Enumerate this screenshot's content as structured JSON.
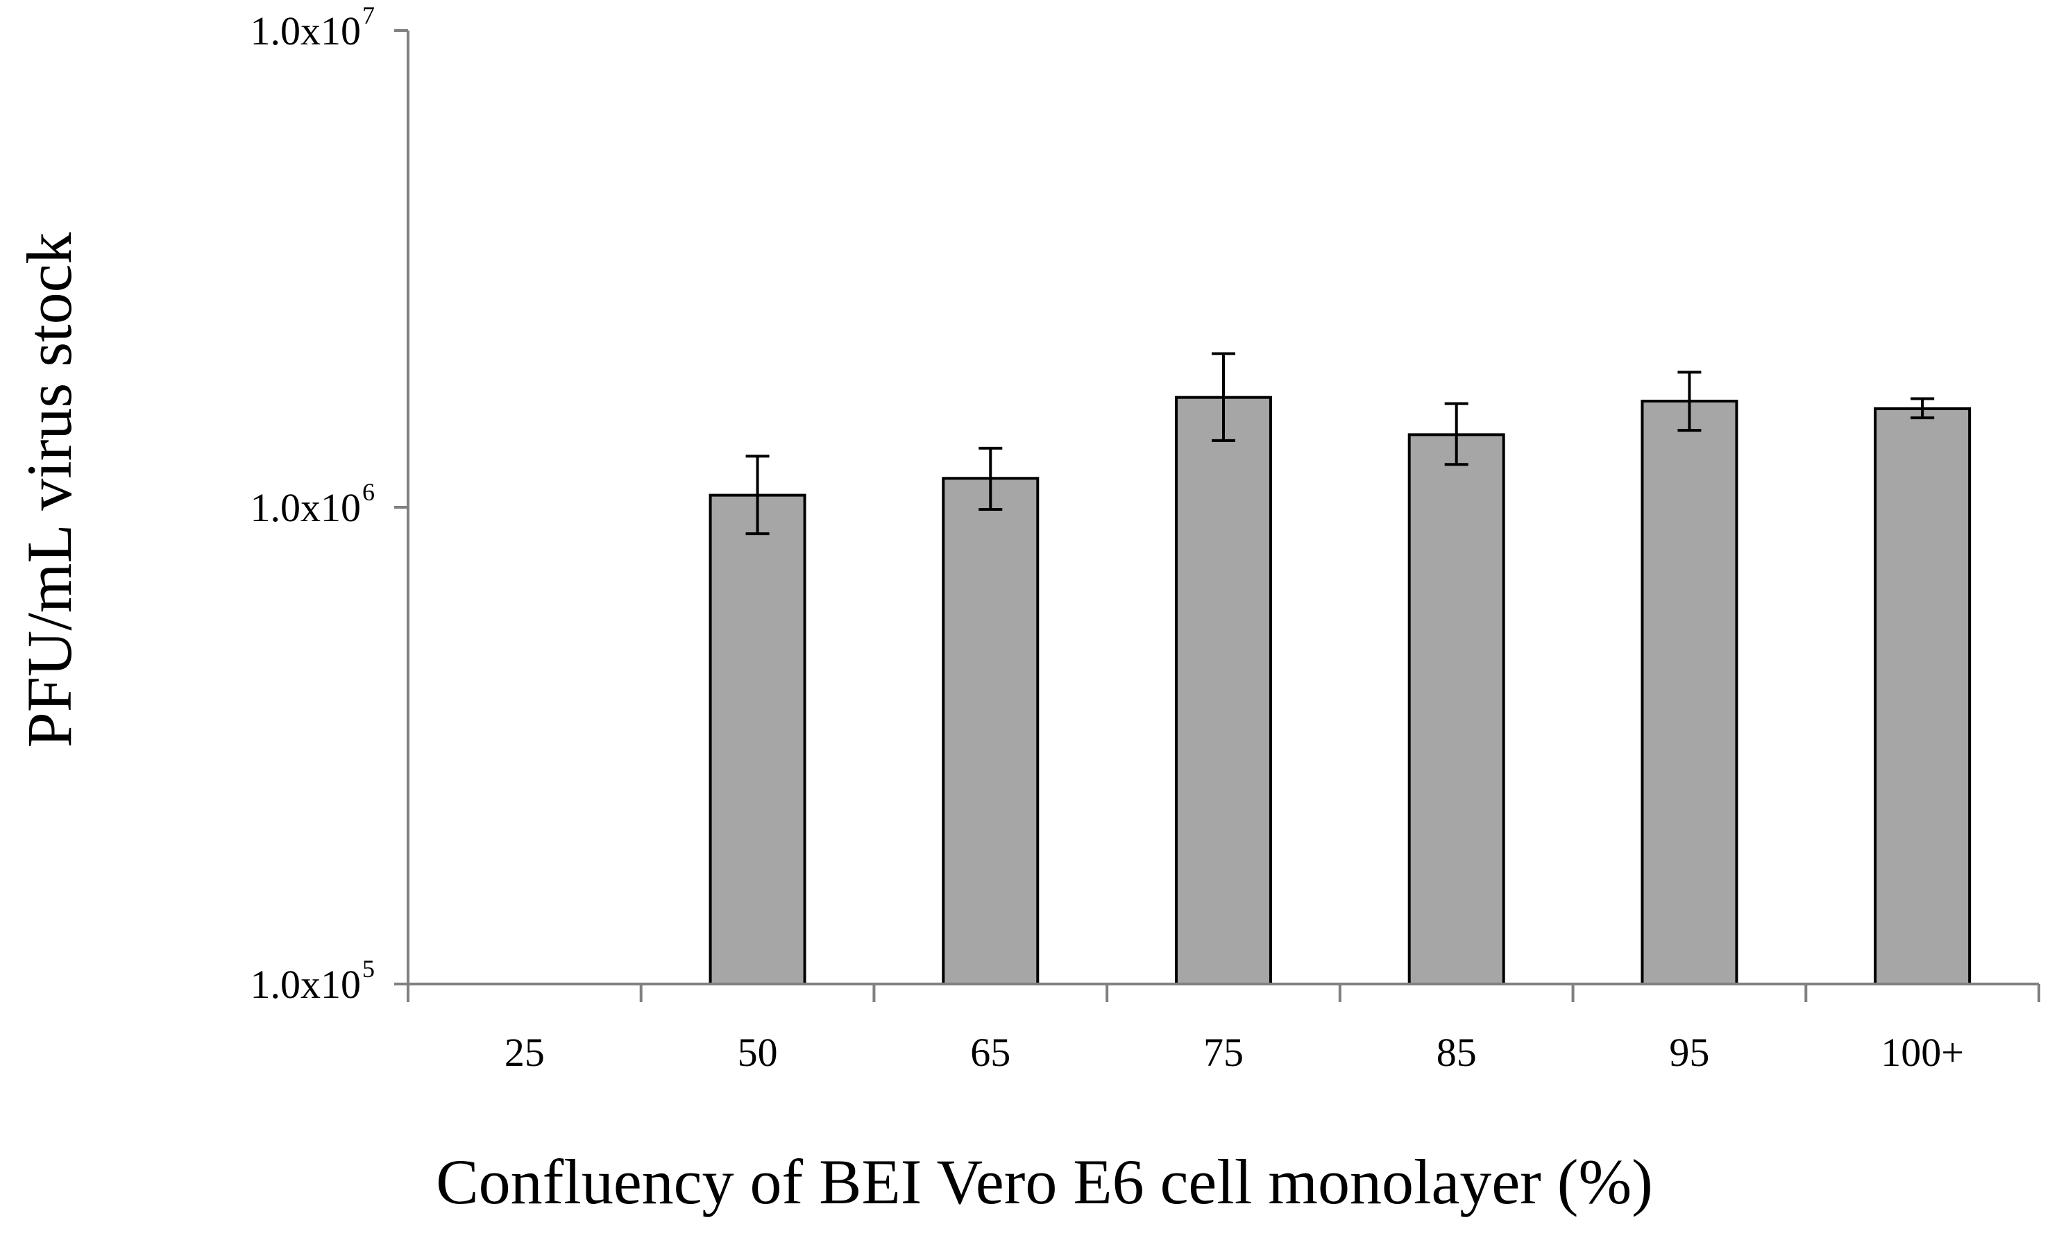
{
  "chart_data": {
    "type": "bar",
    "title": "",
    "xlabel": "Confluency of BEI Vero E6 cell monolayer (%)",
    "ylabel": "PFU/mL virus stock",
    "y_scale": "log",
    "ylim": [
      100000,
      10000000
    ],
    "y_ticks": [
      {
        "mantissa": "1.0x10",
        "exponent": "5",
        "value": 100000
      },
      {
        "mantissa": "1.0x10",
        "exponent": "6",
        "value": 1000000
      },
      {
        "mantissa": "1.0x10",
        "exponent": "7",
        "value": 10000000
      }
    ],
    "categories": [
      "25",
      "50",
      "65",
      "75",
      "85",
      "95",
      "100+"
    ],
    "values": [
      null,
      1060000,
      1150000,
      1700000,
      1420000,
      1670000,
      1610000
    ],
    "error_low": [
      null,
      880000,
      990000,
      1380000,
      1230000,
      1450000,
      1540000
    ],
    "error_high": [
      null,
      1280000,
      1330000,
      2100000,
      1650000,
      1920000,
      1690000
    ],
    "bar_color": "#a6a6a6",
    "bar_edge_color": "#000000",
    "axis_color": "#808080",
    "grid": false,
    "legend": "none"
  }
}
